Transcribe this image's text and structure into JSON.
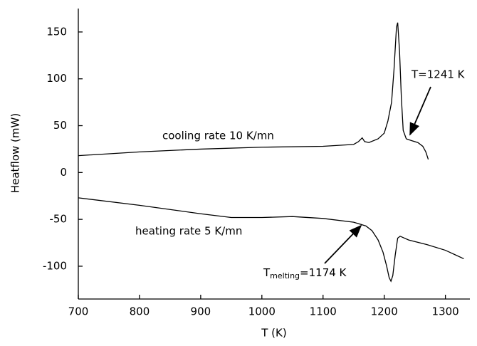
{
  "chart_data": {
    "type": "line",
    "x_label": "T (K)",
    "y_label": "Heatflow (mW)",
    "xlim": [
      700,
      1340
    ],
    "ylim": [
      -135,
      175
    ],
    "xticks": [
      700,
      800,
      900,
      1000,
      1100,
      1200,
      1300
    ],
    "yticks": [
      -100,
      -50,
      0,
      50,
      100,
      150
    ],
    "series": [
      {
        "color": "#000000",
        "x": [
          700,
          800,
          900,
          1000,
          1100,
          1150,
          1158,
          1164,
          1168,
          1175,
          1190,
          1200,
          1206,
          1212,
          1216,
          1220,
          1222,
          1225,
          1228,
          1231,
          1236,
          1245,
          1255,
          1263,
          1268,
          1272
        ],
        "values": [
          18,
          22,
          25,
          27,
          28,
          30,
          33,
          37,
          33,
          32,
          36,
          42,
          55,
          75,
          110,
          155,
          160,
          130,
          80,
          45,
          36,
          34,
          32,
          28,
          22,
          14
        ]
      },
      {
        "color": "#000000",
        "x": [
          700,
          800,
          900,
          950,
          1000,
          1050,
          1100,
          1150,
          1170,
          1180,
          1190,
          1198,
          1204,
          1208,
          1211,
          1214,
          1218,
          1222,
          1226,
          1240,
          1270,
          1300,
          1330
        ],
        "values": [
          -27,
          -35,
          -44,
          -48,
          -48,
          -47,
          -49,
          -53,
          -57,
          -62,
          -72,
          -85,
          -100,
          -112,
          -116,
          -110,
          -88,
          -70,
          -68,
          -72,
          -77,
          -83,
          -92
        ]
      }
    ],
    "annotations": {
      "cooling": "cooling rate 10 K/mn",
      "heating": "heating rate 5 K/mn",
      "crystallization": "T=1241 K",
      "melting": {
        "symbol": "T",
        "subscript": "melting",
        "rest": "=1174 K"
      }
    }
  }
}
